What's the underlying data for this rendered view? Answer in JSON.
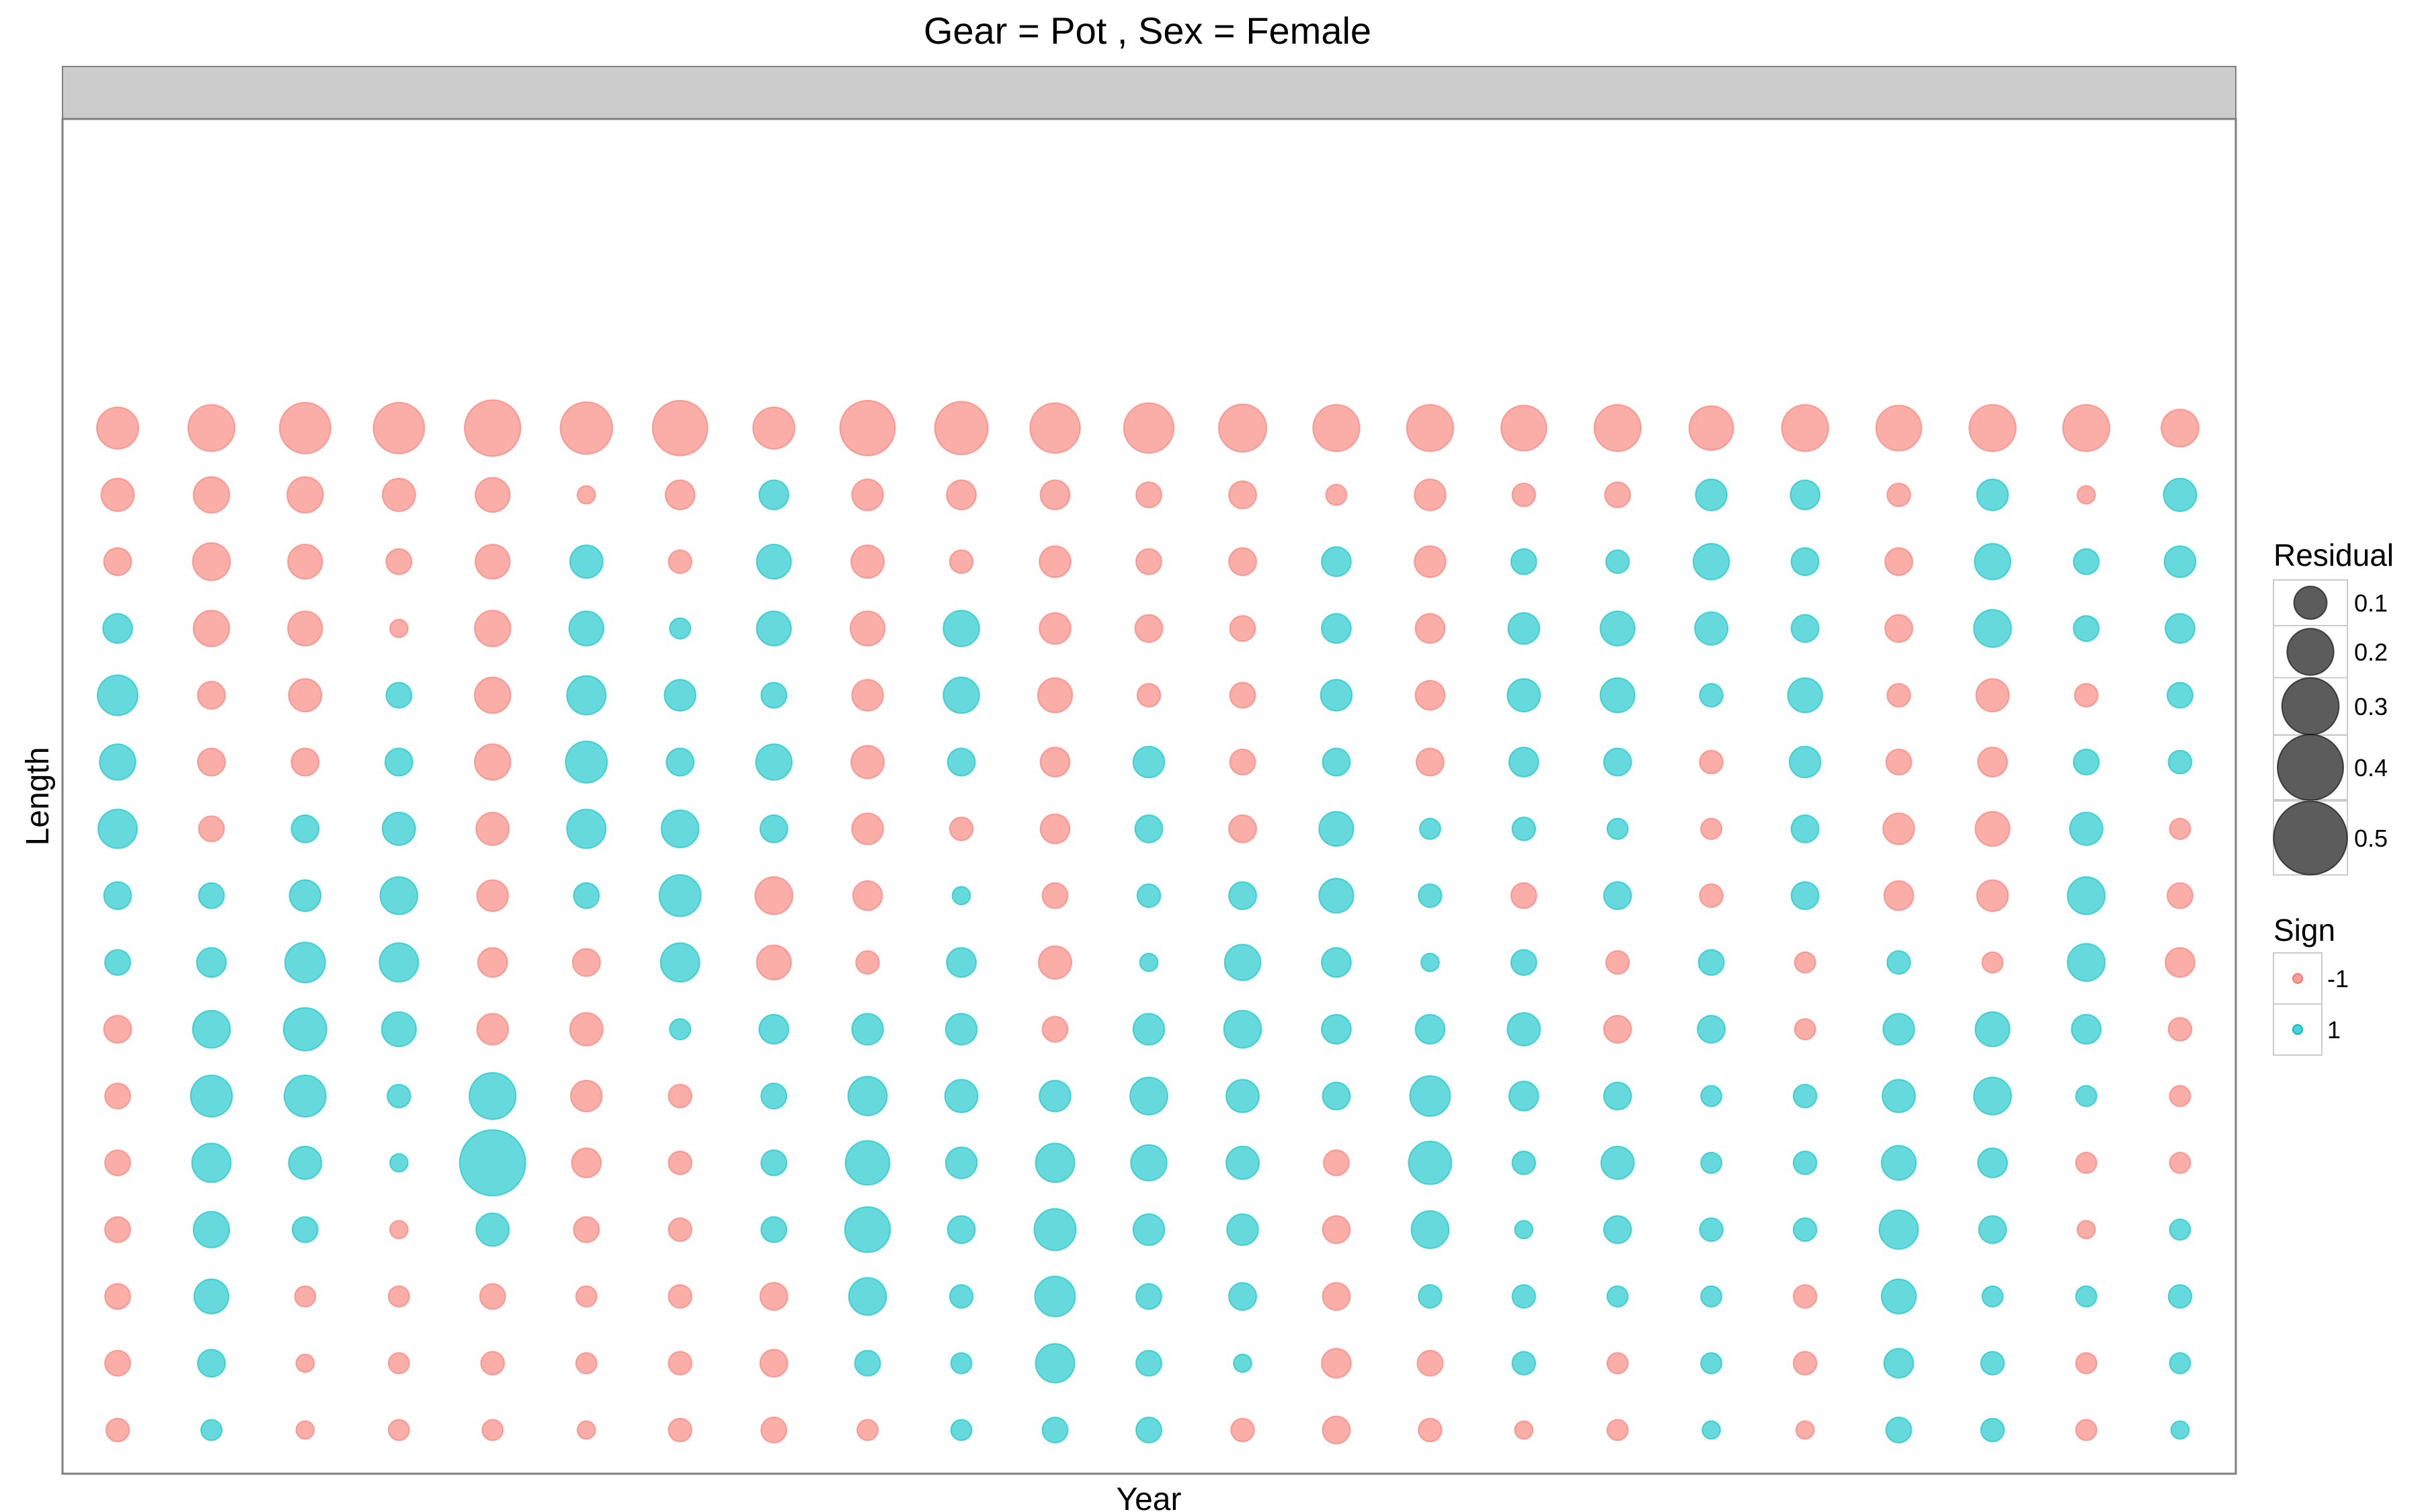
{
  "chart_data": {
    "type": "scatter",
    "subtype": "bubble",
    "title": "Gear = Pot , Sex = Female",
    "strip_label": "",
    "xlabel": "Year",
    "ylabel": "Length",
    "x_tick_labels": false,
    "y_tick_labels": false,
    "grid": false,
    "n_columns": 23,
    "n_rows": 16,
    "legend": {
      "placement": "right",
      "size_title": "Residual",
      "size_entries": [
        {
          "value": 0.1,
          "label": "0.1"
        },
        {
          "value": 0.2,
          "label": "0.2"
        },
        {
          "value": 0.3,
          "label": "0.3"
        },
        {
          "value": 0.4,
          "label": "0.4"
        },
        {
          "value": 0.5,
          "label": "0.5"
        }
      ],
      "color_title": "Sign",
      "color_entries": [
        {
          "value": -1,
          "label": "-1",
          "color": "#F8766D"
        },
        {
          "value": 1,
          "label": "1",
          "color": "#00BFC4"
        }
      ]
    },
    "colors": {
      "negative": "#F8766D",
      "positive": "#00BFC4",
      "legend_size": "#333333",
      "strip": "#CCCCCC",
      "frame": "#7F7F7F"
    },
    "cells_note": "rows listed top to bottom; each cell [sign, |residual|]",
    "rows": [
      [
        [
          -1,
          0.16
        ],
        [
          -1,
          0.2
        ],
        [
          -1,
          0.24
        ],
        [
          -1,
          0.24
        ],
        [
          -1,
          0.29
        ],
        [
          -1,
          0.25
        ],
        [
          -1,
          0.28
        ],
        [
          -1,
          0.16
        ],
        [
          -1,
          0.28
        ],
        [
          -1,
          0.26
        ],
        [
          -1,
          0.23
        ],
        [
          -1,
          0.23
        ],
        [
          -1,
          0.21
        ],
        [
          -1,
          0.2
        ],
        [
          -1,
          0.2
        ],
        [
          -1,
          0.19
        ],
        [
          -1,
          0.2
        ],
        [
          -1,
          0.18
        ],
        [
          -1,
          0.2
        ],
        [
          -1,
          0.19
        ],
        [
          -1,
          0.2
        ],
        [
          -1,
          0.2
        ],
        [
          -1,
          0.13
        ]
      ],
      [
        [
          -1,
          0.1
        ],
        [
          -1,
          0.12
        ],
        [
          -1,
          0.12
        ],
        [
          -1,
          0.1
        ],
        [
          -1,
          0.11
        ],
        [
          -1,
          0.03
        ],
        [
          -1,
          0.08
        ],
        [
          1,
          0.08
        ],
        [
          -1,
          0.09
        ],
        [
          -1,
          0.08
        ],
        [
          -1,
          0.08
        ],
        [
          -1,
          0.06
        ],
        [
          -1,
          0.07
        ],
        [
          -1,
          0.04
        ],
        [
          -1,
          0.09
        ],
        [
          -1,
          0.05
        ],
        [
          -1,
          0.06
        ],
        [
          1,
          0.09
        ],
        [
          1,
          0.08
        ],
        [
          -1,
          0.05
        ],
        [
          1,
          0.09
        ],
        [
          -1,
          0.03
        ],
        [
          1,
          0.1
        ]
      ],
      [
        [
          -1,
          0.07
        ],
        [
          -1,
          0.13
        ],
        [
          -1,
          0.11
        ],
        [
          -1,
          0.06
        ],
        [
          -1,
          0.11
        ],
        [
          1,
          0.1
        ],
        [
          -1,
          0.05
        ],
        [
          1,
          0.11
        ],
        [
          -1,
          0.1
        ],
        [
          -1,
          0.05
        ],
        [
          -1,
          0.09
        ],
        [
          -1,
          0.06
        ],
        [
          -1,
          0.07
        ],
        [
          1,
          0.08
        ],
        [
          -1,
          0.09
        ],
        [
          1,
          0.06
        ],
        [
          1,
          0.05
        ],
        [
          1,
          0.12
        ],
        [
          1,
          0.07
        ],
        [
          -1,
          0.07
        ],
        [
          1,
          0.12
        ],
        [
          1,
          0.06
        ],
        [
          1,
          0.09
        ]
      ],
      [
        [
          1,
          0.08
        ],
        [
          -1,
          0.12
        ],
        [
          -1,
          0.11
        ],
        [
          -1,
          0.03
        ],
        [
          -1,
          0.12
        ],
        [
          1,
          0.11
        ],
        [
          1,
          0.04
        ],
        [
          1,
          0.11
        ],
        [
          -1,
          0.11
        ],
        [
          1,
          0.12
        ],
        [
          -1,
          0.09
        ],
        [
          -1,
          0.07
        ],
        [
          -1,
          0.06
        ],
        [
          1,
          0.08
        ],
        [
          -1,
          0.08
        ],
        [
          1,
          0.09
        ],
        [
          1,
          0.11
        ],
        [
          1,
          0.1
        ],
        [
          1,
          0.07
        ],
        [
          -1,
          0.07
        ],
        [
          1,
          0.13
        ],
        [
          1,
          0.06
        ],
        [
          1,
          0.08
        ]
      ],
      [
        [
          1,
          0.15
        ],
        [
          -1,
          0.07
        ],
        [
          -1,
          0.1
        ],
        [
          1,
          0.06
        ],
        [
          -1,
          0.12
        ],
        [
          1,
          0.14
        ],
        [
          1,
          0.09
        ],
        [
          1,
          0.06
        ],
        [
          -1,
          0.09
        ],
        [
          1,
          0.12
        ],
        [
          -1,
          0.11
        ],
        [
          -1,
          0.05
        ],
        [
          -1,
          0.06
        ],
        [
          1,
          0.09
        ],
        [
          -1,
          0.08
        ],
        [
          1,
          0.1
        ],
        [
          1,
          0.11
        ],
        [
          1,
          0.05
        ],
        [
          1,
          0.11
        ],
        [
          -1,
          0.05
        ],
        [
          -1,
          0.1
        ],
        [
          -1,
          0.05
        ],
        [
          1,
          0.06
        ]
      ],
      [
        [
          1,
          0.12
        ],
        [
          -1,
          0.07
        ],
        [
          -1,
          0.07
        ],
        [
          1,
          0.07
        ],
        [
          -1,
          0.12
        ],
        [
          1,
          0.16
        ],
        [
          1,
          0.07
        ],
        [
          1,
          0.12
        ],
        [
          -1,
          0.1
        ],
        [
          1,
          0.07
        ],
        [
          -1,
          0.08
        ],
        [
          1,
          0.09
        ],
        [
          -1,
          0.06
        ],
        [
          1,
          0.07
        ],
        [
          -1,
          0.07
        ],
        [
          1,
          0.08
        ],
        [
          1,
          0.07
        ],
        [
          -1,
          0.05
        ],
        [
          1,
          0.09
        ],
        [
          -1,
          0.06
        ],
        [
          -1,
          0.08
        ],
        [
          1,
          0.06
        ],
        [
          1,
          0.05
        ]
      ],
      [
        [
          1,
          0.14
        ],
        [
          -1,
          0.06
        ],
        [
          1,
          0.07
        ],
        [
          1,
          0.1
        ],
        [
          -1,
          0.1
        ],
        [
          1,
          0.14
        ],
        [
          1,
          0.13
        ],
        [
          1,
          0.07
        ],
        [
          -1,
          0.09
        ],
        [
          -1,
          0.05
        ],
        [
          -1,
          0.08
        ],
        [
          1,
          0.07
        ],
        [
          -1,
          0.07
        ],
        [
          1,
          0.11
        ],
        [
          1,
          0.04
        ],
        [
          1,
          0.05
        ],
        [
          1,
          0.04
        ],
        [
          -1,
          0.04
        ],
        [
          1,
          0.07
        ],
        [
          -1,
          0.09
        ],
        [
          -1,
          0.11
        ],
        [
          1,
          0.1
        ],
        [
          -1,
          0.04
        ]
      ],
      [
        [
          1,
          0.07
        ],
        [
          1,
          0.06
        ],
        [
          1,
          0.09
        ],
        [
          1,
          0.13
        ],
        [
          -1,
          0.09
        ],
        [
          1,
          0.06
        ],
        [
          1,
          0.16
        ],
        [
          -1,
          0.13
        ],
        [
          -1,
          0.08
        ],
        [
          1,
          0.03
        ],
        [
          -1,
          0.06
        ],
        [
          1,
          0.05
        ],
        [
          1,
          0.07
        ],
        [
          1,
          0.11
        ],
        [
          1,
          0.05
        ],
        [
          -1,
          0.06
        ],
        [
          1,
          0.07
        ],
        [
          -1,
          0.05
        ],
        [
          1,
          0.07
        ],
        [
          -1,
          0.08
        ],
        [
          -1,
          0.09
        ],
        [
          1,
          0.13
        ],
        [
          -1,
          0.06
        ]
      ],
      [
        [
          1,
          0.06
        ],
        [
          1,
          0.08
        ],
        [
          1,
          0.15
        ],
        [
          1,
          0.14
        ],
        [
          -1,
          0.08
        ],
        [
          -1,
          0.07
        ],
        [
          1,
          0.14
        ],
        [
          -1,
          0.11
        ],
        [
          -1,
          0.05
        ],
        [
          1,
          0.08
        ],
        [
          -1,
          0.1
        ],
        [
          1,
          0.03
        ],
        [
          1,
          0.12
        ],
        [
          1,
          0.08
        ],
        [
          1,
          0.03
        ],
        [
          1,
          0.06
        ],
        [
          -1,
          0.05
        ],
        [
          1,
          0.06
        ],
        [
          -1,
          0.04
        ],
        [
          1,
          0.05
        ],
        [
          -1,
          0.04
        ],
        [
          1,
          0.13
        ],
        [
          -1,
          0.08
        ]
      ],
      [
        [
          -1,
          0.07
        ],
        [
          1,
          0.13
        ],
        [
          1,
          0.17
        ],
        [
          1,
          0.11
        ],
        [
          -1,
          0.09
        ],
        [
          -1,
          0.1
        ],
        [
          1,
          0.04
        ],
        [
          1,
          0.08
        ],
        [
          1,
          0.09
        ],
        [
          1,
          0.09
        ],
        [
          -1,
          0.06
        ],
        [
          1,
          0.09
        ],
        [
          1,
          0.13
        ],
        [
          1,
          0.08
        ],
        [
          1,
          0.08
        ],
        [
          1,
          0.1
        ],
        [
          -1,
          0.07
        ],
        [
          1,
          0.07
        ],
        [
          -1,
          0.04
        ],
        [
          1,
          0.09
        ],
        [
          1,
          0.11
        ],
        [
          1,
          0.08
        ],
        [
          -1,
          0.05
        ]
      ],
      [
        [
          -1,
          0.06
        ],
        [
          1,
          0.16
        ],
        [
          1,
          0.16
        ],
        [
          1,
          0.05
        ],
        [
          1,
          0.2
        ],
        [
          -1,
          0.09
        ],
        [
          -1,
          0.05
        ],
        [
          1,
          0.06
        ],
        [
          1,
          0.14
        ],
        [
          1,
          0.1
        ],
        [
          1,
          0.09
        ],
        [
          1,
          0.13
        ],
        [
          1,
          0.1
        ],
        [
          1,
          0.07
        ],
        [
          1,
          0.15
        ],
        [
          1,
          0.08
        ],
        [
          1,
          0.07
        ],
        [
          1,
          0.04
        ],
        [
          1,
          0.05
        ],
        [
          1,
          0.1
        ],
        [
          1,
          0.13
        ],
        [
          1,
          0.04
        ],
        [
          -1,
          0.04
        ]
      ],
      [
        [
          -1,
          0.06
        ],
        [
          1,
          0.14
        ],
        [
          1,
          0.1
        ],
        [
          1,
          0.03
        ],
        [
          1,
          0.4
        ],
        [
          -1,
          0.08
        ],
        [
          -1,
          0.05
        ],
        [
          1,
          0.06
        ],
        [
          1,
          0.18
        ],
        [
          1,
          0.09
        ],
        [
          1,
          0.14
        ],
        [
          1,
          0.12
        ],
        [
          1,
          0.1
        ],
        [
          -1,
          0.06
        ],
        [
          1,
          0.17
        ],
        [
          1,
          0.05
        ],
        [
          1,
          0.1
        ],
        [
          1,
          0.04
        ],
        [
          1,
          0.05
        ],
        [
          1,
          0.11
        ],
        [
          1,
          0.08
        ],
        [
          -1,
          0.04
        ],
        [
          -1,
          0.04
        ]
      ],
      [
        [
          -1,
          0.06
        ],
        [
          1,
          0.12
        ],
        [
          1,
          0.06
        ],
        [
          -1,
          0.03
        ],
        [
          1,
          0.1
        ],
        [
          -1,
          0.06
        ],
        [
          -1,
          0.05
        ],
        [
          1,
          0.06
        ],
        [
          1,
          0.19
        ],
        [
          1,
          0.07
        ],
        [
          1,
          0.16
        ],
        [
          1,
          0.09
        ],
        [
          1,
          0.09
        ],
        [
          -1,
          0.07
        ],
        [
          1,
          0.13
        ],
        [
          1,
          0.03
        ],
        [
          1,
          0.07
        ],
        [
          1,
          0.05
        ],
        [
          1,
          0.05
        ],
        [
          1,
          0.14
        ],
        [
          1,
          0.07
        ],
        [
          -1,
          0.03
        ],
        [
          1,
          0.04
        ]
      ],
      [
        [
          -1,
          0.06
        ],
        [
          1,
          0.11
        ],
        [
          -1,
          0.04
        ],
        [
          -1,
          0.04
        ],
        [
          -1,
          0.06
        ],
        [
          -1,
          0.04
        ],
        [
          -1,
          0.05
        ],
        [
          -1,
          0.07
        ],
        [
          1,
          0.13
        ],
        [
          1,
          0.05
        ],
        [
          1,
          0.15
        ],
        [
          1,
          0.06
        ],
        [
          1,
          0.07
        ],
        [
          -1,
          0.07
        ],
        [
          1,
          0.05
        ],
        [
          1,
          0.05
        ],
        [
          1,
          0.04
        ],
        [
          1,
          0.04
        ],
        [
          -1,
          0.05
        ],
        [
          1,
          0.11
        ],
        [
          1,
          0.04
        ],
        [
          1,
          0.04
        ],
        [
          1,
          0.05
        ]
      ],
      [
        [
          -1,
          0.06
        ],
        [
          1,
          0.07
        ],
        [
          -1,
          0.03
        ],
        [
          -1,
          0.04
        ],
        [
          -1,
          0.05
        ],
        [
          -1,
          0.04
        ],
        [
          -1,
          0.05
        ],
        [
          -1,
          0.07
        ],
        [
          1,
          0.06
        ],
        [
          1,
          0.04
        ],
        [
          1,
          0.14
        ],
        [
          1,
          0.06
        ],
        [
          1,
          0.03
        ],
        [
          -1,
          0.08
        ],
        [
          -1,
          0.06
        ],
        [
          1,
          0.05
        ],
        [
          -1,
          0.04
        ],
        [
          1,
          0.04
        ],
        [
          -1,
          0.05
        ],
        [
          1,
          0.08
        ],
        [
          1,
          0.05
        ],
        [
          -1,
          0.04
        ],
        [
          1,
          0.04
        ]
      ],
      [
        [
          -1,
          0.05
        ],
        [
          1,
          0.04
        ],
        [
          -1,
          0.03
        ],
        [
          -1,
          0.04
        ],
        [
          -1,
          0.04
        ],
        [
          -1,
          0.03
        ],
        [
          -1,
          0.05
        ],
        [
          -1,
          0.06
        ],
        [
          -1,
          0.04
        ],
        [
          1,
          0.04
        ],
        [
          1,
          0.06
        ],
        [
          1,
          0.06
        ],
        [
          -1,
          0.05
        ],
        [
          -1,
          0.07
        ],
        [
          -1,
          0.05
        ],
        [
          -1,
          0.03
        ],
        [
          -1,
          0.04
        ],
        [
          1,
          0.03
        ],
        [
          -1,
          0.03
        ],
        [
          1,
          0.06
        ],
        [
          1,
          0.05
        ],
        [
          -1,
          0.04
        ],
        [
          1,
          0.03
        ]
      ]
    ]
  }
}
